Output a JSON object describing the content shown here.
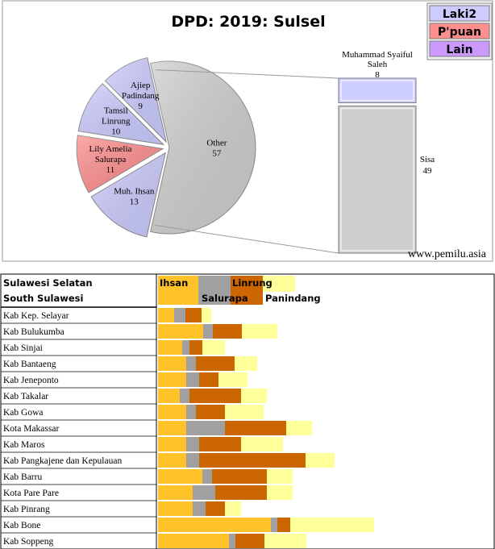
{
  "chart_data": [
    {
      "type": "pie",
      "title": "DPD: 2019: Sulsel",
      "watermark": "www.pemilu.asia",
      "legend": [
        {
          "label": "Laki2",
          "color": "#ccccff"
        },
        {
          "label": "P'puan",
          "color": "#ff8f8f"
        },
        {
          "label": "Lain",
          "color": "#cc99ff"
        }
      ],
      "slices": [
        {
          "label": "Other",
          "value": 57,
          "color": "#cfcfcf"
        },
        {
          "label": "Muh. Ihsan",
          "value": 13,
          "color": "#ccccff"
        },
        {
          "label": "Lily Amelia Salurapa",
          "value": 11,
          "color": "#ff8f8f"
        },
        {
          "label": "Tamsil Linrung",
          "value": 10,
          "color": "#ccccff"
        },
        {
          "label": "Ajiep Padindang",
          "value": 9,
          "color": "#ccccff"
        }
      ],
      "breakdown": {
        "of": "Other",
        "items": [
          {
            "label": "Muhammad Syaiful Saleh",
            "value": 8,
            "color": "#ccccff"
          },
          {
            "label": "Sisa",
            "value": 49,
            "color": "#cfcfcf"
          }
        ]
      }
    },
    {
      "type": "bar",
      "stacked": true,
      "header": [
        "Sulawesi Selatan",
        "South Sulawesi"
      ],
      "series": [
        {
          "name": "Ihsan",
          "color": "#ffc229"
        },
        {
          "name": "Salurapa",
          "color": "#a0a0a0"
        },
        {
          "name": "Linrung",
          "color": "#cc6600"
        },
        {
          "name": "Panindang",
          "color": "#ffff99"
        }
      ],
      "rows": [
        {
          "name": "Kab Kep. Selayar",
          "values": [
            20,
            14,
            20,
            12
          ]
        },
        {
          "name": "Kab Bulukumba",
          "values": [
            56,
            12,
            36,
            44
          ]
        },
        {
          "name": "Kab Sinjai",
          "values": [
            30,
            9,
            16,
            28
          ]
        },
        {
          "name": "Kab Bantaeng",
          "values": [
            35,
            12,
            48,
            28
          ]
        },
        {
          "name": "Kab Jeneponto",
          "values": [
            35,
            16,
            24,
            36
          ]
        },
        {
          "name": "Kab Takalar",
          "values": [
            27,
            12,
            64,
            32
          ]
        },
        {
          "name": "Kab Gowa",
          "values": [
            35,
            12,
            36,
            48
          ]
        },
        {
          "name": "Kota Makassar",
          "values": [
            35,
            48,
            76,
            32
          ]
        },
        {
          "name": "Kab Maros",
          "values": [
            35,
            16,
            52,
            52
          ]
        },
        {
          "name": "Kab Pangkajene dan Kepulauan",
          "values": [
            35,
            16,
            132,
            36
          ]
        },
        {
          "name": "Kab Barru",
          "values": [
            55,
            12,
            68,
            32
          ]
        },
        {
          "name": "Kota Pare Pare",
          "values": [
            43,
            28,
            64,
            32
          ]
        },
        {
          "name": "Kab Pinrang",
          "values": [
            43,
            16,
            24,
            20
          ]
        },
        {
          "name": "Kab Bone",
          "values": [
            140,
            8,
            16,
            104
          ]
        },
        {
          "name": "Kab Soppeng",
          "values": [
            88,
            8,
            36,
            52
          ]
        }
      ]
    }
  ]
}
